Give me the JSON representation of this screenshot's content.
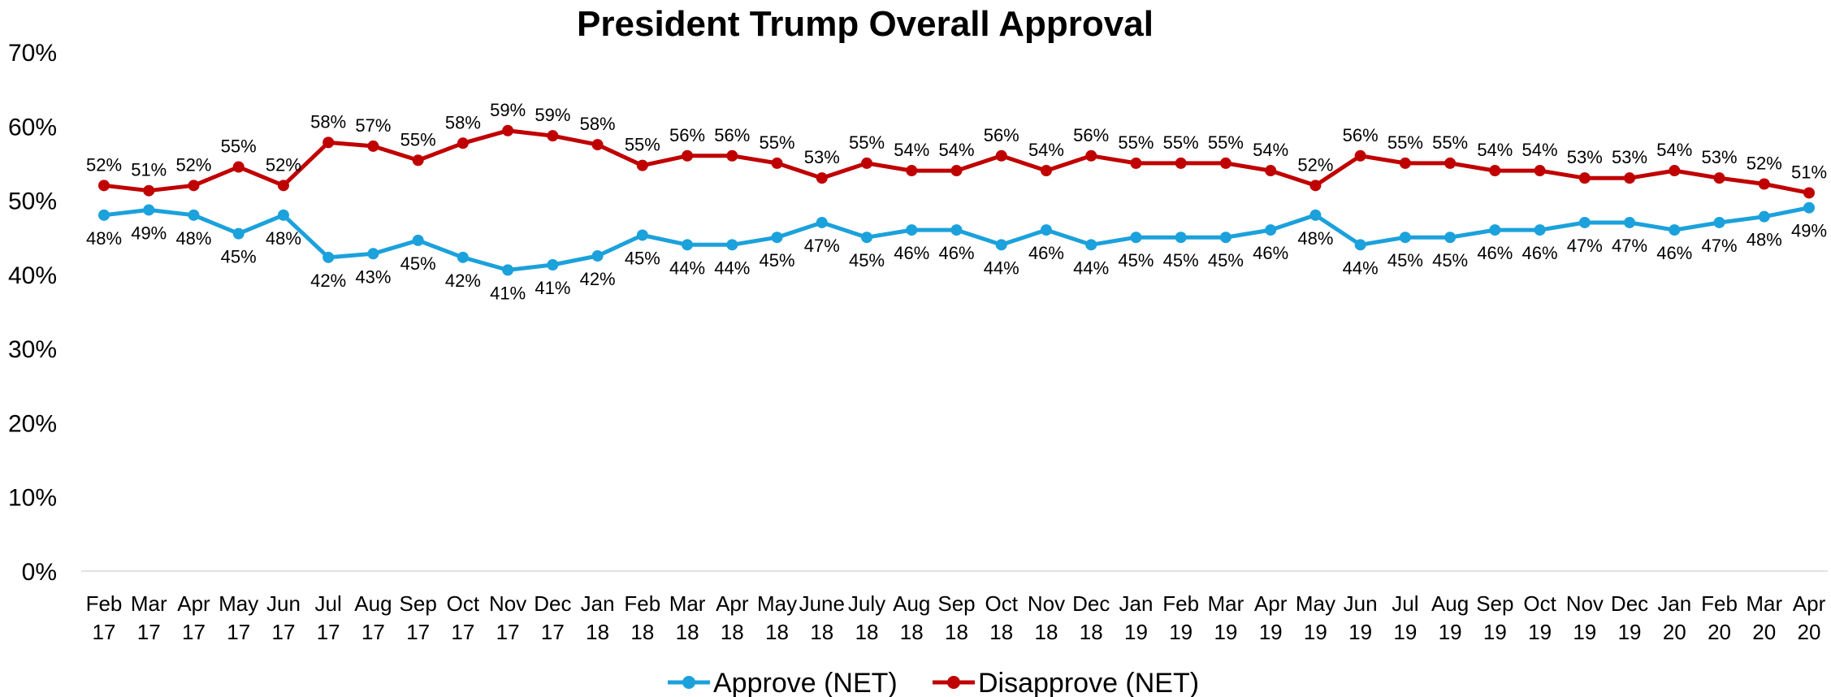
{
  "chart_data": {
    "type": "line",
    "title": "President Trump Overall Approval",
    "xlabel": "",
    "ylabel": "",
    "ylim": [
      0,
      70
    ],
    "yticks": [
      "0%",
      "10%",
      "20%",
      "30%",
      "40%",
      "50%",
      "60%",
      "70%"
    ],
    "categories": [
      [
        "Feb",
        "17"
      ],
      [
        "Mar",
        "17"
      ],
      [
        "Apr",
        "17"
      ],
      [
        "May",
        "17"
      ],
      [
        "Jun",
        "17"
      ],
      [
        "Jul",
        "17"
      ],
      [
        "Aug",
        "17"
      ],
      [
        "Sep",
        "17"
      ],
      [
        "Oct",
        "17"
      ],
      [
        "Nov",
        "17"
      ],
      [
        "Dec",
        "17"
      ],
      [
        "Jan",
        "18"
      ],
      [
        "Feb",
        "18"
      ],
      [
        "Mar",
        "18"
      ],
      [
        "Apr",
        "18"
      ],
      [
        "May",
        "18"
      ],
      [
        "June",
        "18"
      ],
      [
        "July",
        "18"
      ],
      [
        "Aug",
        "18"
      ],
      [
        "Sep",
        "18"
      ],
      [
        "Oct",
        "18"
      ],
      [
        "Nov",
        "18"
      ],
      [
        "Dec",
        "18"
      ],
      [
        "Jan",
        "19"
      ],
      [
        "Feb",
        "19"
      ],
      [
        "Mar",
        "19"
      ],
      [
        "Apr",
        "19"
      ],
      [
        "May",
        "19"
      ],
      [
        "Jun",
        "19"
      ],
      [
        "Jul",
        "19"
      ],
      [
        "Aug",
        "19"
      ],
      [
        "Sep",
        "19"
      ],
      [
        "Oct",
        "19"
      ],
      [
        "Nov",
        "19"
      ],
      [
        "Dec",
        "19"
      ],
      [
        "Jan",
        "20"
      ],
      [
        "Feb",
        "20"
      ],
      [
        "Mar",
        "20"
      ],
      [
        "Apr",
        "20"
      ]
    ],
    "series": [
      {
        "name": "Approve (NET)",
        "color": "#1BA1DB",
        "label_position": "below",
        "values": [
          48,
          48.7,
          48,
          45.5,
          48,
          42.3,
          42.8,
          44.6,
          42.3,
          40.6,
          41.3,
          42.5,
          45.3,
          44,
          44,
          45,
          47,
          45,
          46,
          46,
          44,
          46,
          44,
          45,
          45,
          45,
          46,
          48,
          44,
          45,
          45,
          46,
          46,
          47,
          47,
          46,
          47,
          47.8,
          49
        ],
        "labels": [
          "48%",
          "49%",
          "48%",
          "45%",
          "48%",
          "42%",
          "43%",
          "45%",
          "42%",
          "41%",
          "41%",
          "42%",
          "45%",
          "44%",
          "44%",
          "45%",
          "47%",
          "45%",
          "46%",
          "46%",
          "44%",
          "46%",
          "44%",
          "45%",
          "45%",
          "45%",
          "46%",
          "48%",
          "44%",
          "45%",
          "45%",
          "46%",
          "46%",
          "47%",
          "47%",
          "46%",
          "47%",
          "48%",
          "49%"
        ]
      },
      {
        "name": "Disapprove (NET)",
        "color": "#C00000",
        "label_position": "above",
        "values": [
          52,
          51.3,
          52,
          54.5,
          52,
          57.8,
          57.3,
          55.4,
          57.7,
          59.4,
          58.7,
          57.5,
          54.7,
          56,
          56,
          55,
          53,
          55,
          54,
          54,
          56,
          54,
          56,
          55,
          55,
          55,
          54,
          52,
          56,
          55,
          55,
          54,
          54,
          53,
          53,
          54,
          53,
          52.2,
          51
        ],
        "labels": [
          "52%",
          "51%",
          "52%",
          "55%",
          "52%",
          "58%",
          "57%",
          "55%",
          "58%",
          "59%",
          "59%",
          "58%",
          "55%",
          "56%",
          "56%",
          "55%",
          "53%",
          "55%",
          "54%",
          "54%",
          "56%",
          "54%",
          "56%",
          "55%",
          "55%",
          "55%",
          "54%",
          "52%",
          "56%",
          "55%",
          "55%",
          "54%",
          "54%",
          "53%",
          "53%",
          "54%",
          "53%",
          "52%",
          "51%"
        ]
      }
    ],
    "grid": false,
    "legend": "bottom-center"
  }
}
